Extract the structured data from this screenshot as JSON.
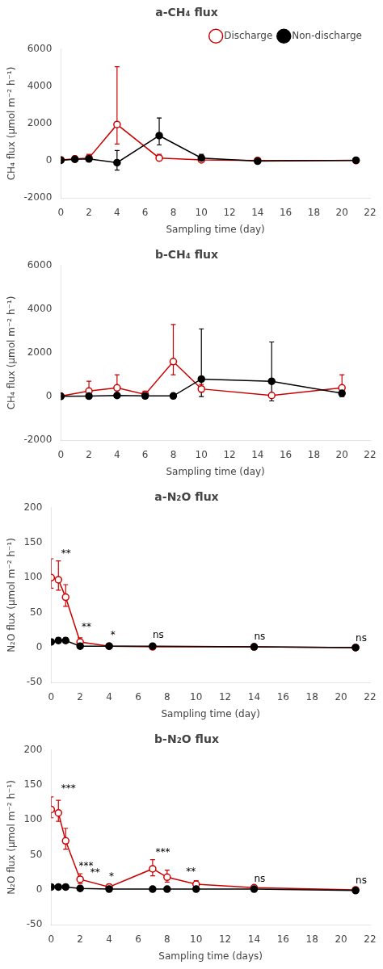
{
  "chart_data": [
    {
      "type": "line",
      "title": "a-CH₄ flux",
      "xlabel": "Sampling time (day)",
      "ylabel": "CH₄ flux (μmol m⁻² h⁻¹)",
      "xlim": [
        0,
        22
      ],
      "xticks": [
        0,
        2,
        4,
        6,
        8,
        10,
        12,
        14,
        16,
        18,
        20,
        22
      ],
      "ylim": [
        -2000,
        6000
      ],
      "yticks": [
        -2000,
        0,
        2000,
        4000,
        6000
      ],
      "grid": false,
      "legend": "upper right",
      "x": [
        0,
        1,
        2,
        4,
        7,
        10,
        14,
        21
      ],
      "series": [
        {
          "name": "Non-discharge",
          "color": "#000000",
          "marker": "circle",
          "line_style": "solid",
          "values": [
            30,
            80,
            100,
            -100,
            1350,
            150,
            -20,
            30
          ],
          "yerr_lower": [
            30,
            80,
            100,
            400,
            500,
            150,
            40,
            30
          ],
          "yerr_upper": [
            80,
            150,
            200,
            650,
            950,
            200,
            40,
            40
          ]
        },
        {
          "name": "Discharge",
          "color": "#cc0000",
          "marker": "open_circle",
          "line_style": "solid",
          "values": [
            50,
            100,
            150,
            1950,
            150,
            50,
            20,
            10
          ],
          "yerr_lower": [
            50,
            100,
            100,
            1050,
            150,
            50,
            20,
            10
          ],
          "yerr_upper": [
            100,
            150,
            200,
            3100,
            200,
            80,
            40,
            30
          ]
        }
      ]
    },
    {
      "type": "line",
      "title": "b-CH₄ flux",
      "xlabel": "Sampling time (day)",
      "ylabel": "CH₄ flux (μmol m⁻² h⁻¹)",
      "xlim": [
        0,
        22
      ],
      "xticks": [
        0,
        2,
        4,
        6,
        8,
        10,
        12,
        14,
        16,
        18,
        20,
        22
      ],
      "ylim": [
        -2000,
        6000
      ],
      "yticks": [
        -2000,
        0,
        2000,
        4000,
        6000
      ],
      "grid": false,
      "legend": false,
      "x": [
        0,
        2,
        4,
        6,
        8,
        10,
        15,
        20
      ],
      "series": [
        {
          "name": "Non-discharge",
          "color": "#000000",
          "marker": "circle",
          "line_style": "solid",
          "values": [
            10,
            20,
            50,
            30,
            30,
            800,
            700,
            150
          ],
          "yerr_lower": [
            10,
            20,
            50,
            30,
            30,
            800,
            900,
            150
          ],
          "yerr_upper": [
            20,
            30,
            80,
            50,
            30,
            2300,
            1800,
            150
          ]
        },
        {
          "name": "Discharge",
          "color": "#cc0000",
          "marker": "open_circle",
          "line_style": "solid",
          "values": [
            20,
            250,
            400,
            100,
            1600,
            350,
            50,
            400
          ],
          "yerr_lower": [
            20,
            200,
            300,
            100,
            600,
            150,
            50,
            200
          ],
          "yerr_upper": [
            30,
            450,
            600,
            150,
            1700,
            200,
            80,
            600
          ]
        }
      ]
    },
    {
      "type": "line",
      "title": "a-N₂O flux",
      "xlabel": "Sampling time (day)",
      "ylabel": "N₂O flux (μmol m⁻² h⁻¹)",
      "xlim": [
        0,
        22
      ],
      "xticks": [
        0,
        2,
        4,
        6,
        8,
        10,
        12,
        14,
        16,
        18,
        20,
        22
      ],
      "ylim": [
        -50,
        200
      ],
      "yticks": [
        -50,
        0,
        50,
        100,
        150,
        200
      ],
      "grid": false,
      "legend": false,
      "x": [
        0,
        0.5,
        1,
        2,
        4,
        7,
        14,
        21
      ],
      "series": [
        {
          "name": "Non-discharge",
          "color": "#000000",
          "marker": "circle",
          "line_style": "solid",
          "values": [
            8,
            10,
            10,
            2,
            2,
            2,
            1,
            0
          ],
          "yerr_lower": [
            3,
            3,
            3,
            1,
            1,
            1,
            0.5,
            0
          ],
          "yerr_upper": [
            4,
            4,
            4,
            1,
            1,
            1,
            0.5,
            0
          ]
        },
        {
          "name": "Discharge",
          "color": "#cc0000",
          "marker": "open_circle",
          "line_style": "solid",
          "values": [
            100,
            97,
            72,
            8,
            2,
            1,
            1,
            0
          ],
          "yerr_lower": [
            15,
            15,
            13,
            4,
            2,
            1,
            0.5,
            0
          ],
          "yerr_upper": [
            27,
            27,
            18,
            6,
            2,
            1,
            1,
            0.5
          ]
        }
      ],
      "annotations": [
        {
          "x": 0.7,
          "y": 127,
          "text": "**"
        },
        {
          "x": 2.1,
          "y": 22,
          "text": "**"
        },
        {
          "x": 4.1,
          "y": 10,
          "text": "*"
        },
        {
          "x": 7.0,
          "y": 10,
          "text": "ns"
        },
        {
          "x": 14.0,
          "y": 8,
          "text": "ns"
        },
        {
          "x": 21.0,
          "y": 6,
          "text": "ns"
        }
      ]
    },
    {
      "type": "line",
      "title": "b-N₂O flux",
      "xlabel": "Sampling time (days)",
      "ylabel": "N₂O flux (μmol m⁻² h⁻¹)",
      "xlim": [
        0,
        22
      ],
      "xticks": [
        0,
        2,
        4,
        6,
        8,
        10,
        12,
        14,
        16,
        18,
        20,
        22
      ],
      "ylim": [
        -50,
        200
      ],
      "yticks": [
        -50,
        0,
        50,
        100,
        150,
        200
      ],
      "grid": false,
      "legend": false,
      "x": [
        0,
        0.5,
        1,
        2,
        4,
        7,
        8,
        10,
        14,
        21
      ],
      "series": [
        {
          "name": "Non-discharge",
          "color": "#000000",
          "marker": "circle",
          "line_style": "solid",
          "values": [
            4,
            4,
            4,
            2,
            1,
            1,
            1,
            1,
            1,
            -1
          ],
          "yerr_lower": [
            2,
            2,
            2,
            1,
            0.5,
            0.5,
            0.5,
            0.5,
            0.5,
            0.5
          ],
          "yerr_upper": [
            2,
            2,
            2,
            1,
            1,
            1,
            1,
            1,
            0.5,
            0.5
          ]
        },
        {
          "name": "Discharge",
          "color": "#cc0000",
          "marker": "open_circle",
          "line_style": "solid",
          "values": [
            115,
            110,
            70,
            15,
            4,
            30,
            18,
            8,
            3,
            0
          ],
          "yerr_lower": [
            12,
            12,
            12,
            6,
            3,
            10,
            7,
            4,
            2,
            0
          ],
          "yerr_upper": [
            18,
            18,
            18,
            8,
            4,
            13,
            10,
            5,
            3,
            1
          ]
        }
      ],
      "annotations": [
        {
          "x": 0.7,
          "y": 137,
          "text": "***"
        },
        {
          "x": 1.9,
          "y": 27,
          "text": "***"
        },
        {
          "x": 2.7,
          "y": 17,
          "text": "**"
        },
        {
          "x": 4.0,
          "y": 12,
          "text": "*"
        },
        {
          "x": 7.2,
          "y": 46,
          "text": "***"
        },
        {
          "x": 9.3,
          "y": 19,
          "text": "**"
        },
        {
          "x": 14.0,
          "y": 8,
          "text": "ns"
        },
        {
          "x": 21.0,
          "y": 6,
          "text": "ns"
        }
      ]
    }
  ]
}
